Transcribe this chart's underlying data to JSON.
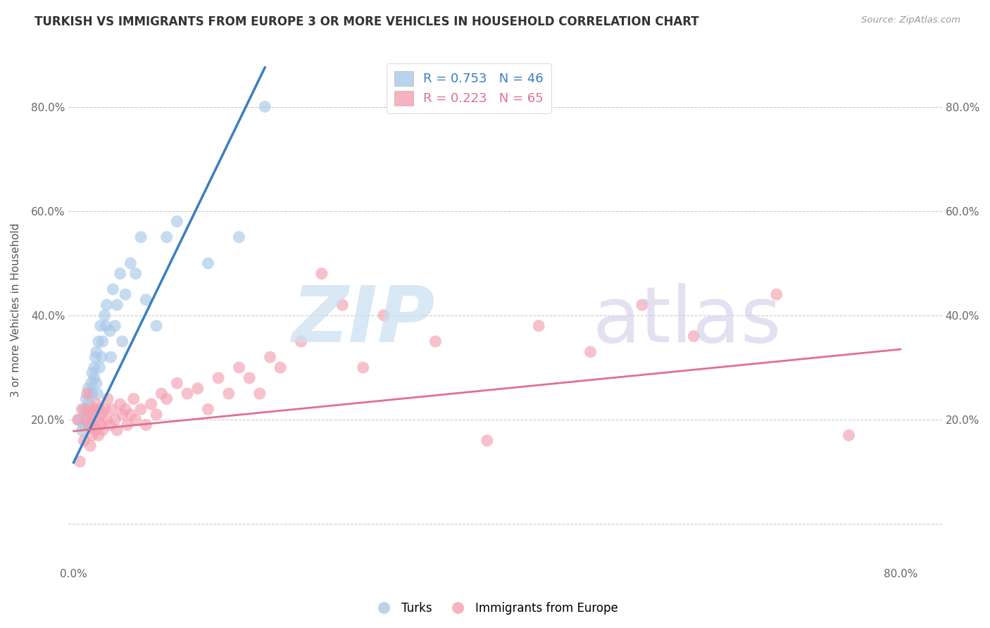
{
  "title": "TURKISH VS IMMIGRANTS FROM EUROPE 3 OR MORE VEHICLES IN HOUSEHOLD CORRELATION CHART",
  "source": "Source: ZipAtlas.com",
  "ylabel": "3 or more Vehicles in Household",
  "legend1_text": "R = 0.753   N = 46",
  "legend2_text": "R = 0.223   N = 65",
  "blue_color": "#a8c8e8",
  "pink_color": "#f4a0b0",
  "blue_line_color": "#3a7fc1",
  "pink_line_color": "#e07090",
  "blue_scatter_x": [
    0.005,
    0.008,
    0.01,
    0.01,
    0.012,
    0.013,
    0.014,
    0.015,
    0.015,
    0.016,
    0.017,
    0.018,
    0.018,
    0.019,
    0.02,
    0.02,
    0.021,
    0.022,
    0.022,
    0.023,
    0.024,
    0.025,
    0.026,
    0.027,
    0.028,
    0.03,
    0.031,
    0.032,
    0.035,
    0.036,
    0.038,
    0.04,
    0.042,
    0.045,
    0.047,
    0.05,
    0.055,
    0.06,
    0.065,
    0.07,
    0.08,
    0.09,
    0.1,
    0.13,
    0.16,
    0.185
  ],
  "blue_scatter_y": [
    0.2,
    0.18,
    0.22,
    0.19,
    0.24,
    0.21,
    0.26,
    0.23,
    0.19,
    0.25,
    0.27,
    0.29,
    0.25,
    0.21,
    0.3,
    0.28,
    0.32,
    0.27,
    0.33,
    0.25,
    0.35,
    0.3,
    0.38,
    0.32,
    0.35,
    0.4,
    0.38,
    0.42,
    0.37,
    0.32,
    0.45,
    0.38,
    0.42,
    0.48,
    0.35,
    0.44,
    0.5,
    0.48,
    0.55,
    0.43,
    0.38,
    0.55,
    0.58,
    0.5,
    0.55,
    0.8
  ],
  "pink_scatter_x": [
    0.004,
    0.006,
    0.008,
    0.01,
    0.012,
    0.013,
    0.014,
    0.015,
    0.016,
    0.017,
    0.018,
    0.019,
    0.02,
    0.021,
    0.022,
    0.023,
    0.024,
    0.025,
    0.026,
    0.027,
    0.028,
    0.03,
    0.032,
    0.033,
    0.035,
    0.037,
    0.04,
    0.042,
    0.045,
    0.047,
    0.05,
    0.052,
    0.055,
    0.058,
    0.06,
    0.065,
    0.07,
    0.075,
    0.08,
    0.085,
    0.09,
    0.1,
    0.11,
    0.12,
    0.13,
    0.14,
    0.15,
    0.16,
    0.17,
    0.18,
    0.19,
    0.2,
    0.22,
    0.24,
    0.26,
    0.28,
    0.3,
    0.35,
    0.4,
    0.45,
    0.5,
    0.55,
    0.6,
    0.68,
    0.75
  ],
  "pink_scatter_y": [
    0.2,
    0.12,
    0.22,
    0.16,
    0.2,
    0.25,
    0.22,
    0.19,
    0.15,
    0.21,
    0.17,
    0.19,
    0.22,
    0.18,
    0.23,
    0.2,
    0.17,
    0.22,
    0.19,
    0.21,
    0.18,
    0.22,
    0.2,
    0.24,
    0.19,
    0.22,
    0.2,
    0.18,
    0.23,
    0.21,
    0.22,
    0.19,
    0.21,
    0.24,
    0.2,
    0.22,
    0.19,
    0.23,
    0.21,
    0.25,
    0.24,
    0.27,
    0.25,
    0.26,
    0.22,
    0.28,
    0.25,
    0.3,
    0.28,
    0.25,
    0.32,
    0.3,
    0.35,
    0.48,
    0.42,
    0.3,
    0.4,
    0.35,
    0.16,
    0.38,
    0.33,
    0.42,
    0.36,
    0.44,
    0.17
  ],
  "blue_line_x": [
    0.0,
    0.185
  ],
  "blue_line_y": [
    0.118,
    0.875
  ],
  "pink_line_x": [
    0.0,
    0.8
  ],
  "pink_line_y": [
    0.178,
    0.335
  ],
  "xlim": [
    -0.005,
    0.84
  ],
  "ylim": [
    -0.08,
    0.9
  ],
  "xtick_vals": [
    0.0,
    0.1,
    0.2,
    0.3,
    0.4,
    0.5,
    0.6,
    0.7,
    0.8
  ],
  "xtick_labels_show": [
    "0.0%",
    "",
    "",
    "",
    "",
    "",
    "",
    "",
    "80.0%"
  ],
  "ytick_vals": [
    0.0,
    0.2,
    0.4,
    0.6,
    0.8
  ],
  "ytick_labels": [
    "",
    "20.0%",
    "40.0%",
    "60.0%",
    "80.0%"
  ]
}
